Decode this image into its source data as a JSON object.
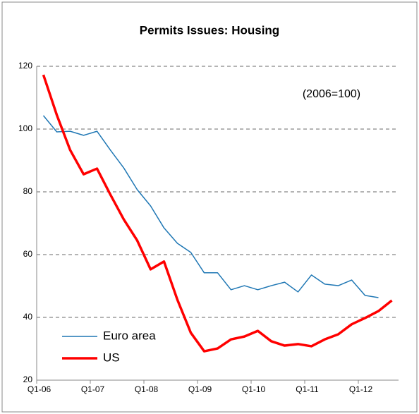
{
  "chart_data": {
    "type": "line",
    "title": "Permits Issues: Housing",
    "annotation": "(2006=100)",
    "categories": [
      "Q1-06",
      null,
      null,
      null,
      "Q1-07",
      null,
      null,
      null,
      "Q1-08",
      null,
      null,
      null,
      "Q1-09",
      null,
      null,
      null,
      "Q1-10",
      null,
      null,
      null,
      "Q1-11",
      null,
      null,
      null,
      "Q1-12",
      null,
      null
    ],
    "series": [
      {
        "name": "Euro area",
        "color": "#1f77b4",
        "width": 1.5,
        "values": [
          104.3,
          99.1,
          99.3,
          98,
          99.3,
          93.3,
          87.6,
          80.7,
          75.5,
          68.5,
          63.6,
          60.7,
          54.2,
          54.2,
          48.8,
          50.1,
          48.8,
          50.1,
          51.2,
          48.1,
          53.5,
          50.6,
          50.1,
          51.9,
          47,
          46.3,
          null
        ]
      },
      {
        "name": "US",
        "color": "#ff0000",
        "width": 3.5,
        "values": [
          117.3,
          104.5,
          93.3,
          85.6,
          87.4,
          79.1,
          71.2,
          64.5,
          55.3,
          57.8,
          45.6,
          35.1,
          29.2,
          30.1,
          33,
          33.9,
          35.7,
          32.4,
          31,
          31.5,
          30.8,
          33,
          34.6,
          37.8,
          39.8,
          42,
          45.4
        ]
      }
    ],
    "ylim": [
      20,
      120
    ],
    "yticks": [
      20,
      40,
      60,
      80,
      100,
      120
    ],
    "grid": true,
    "legend": "lower left"
  }
}
